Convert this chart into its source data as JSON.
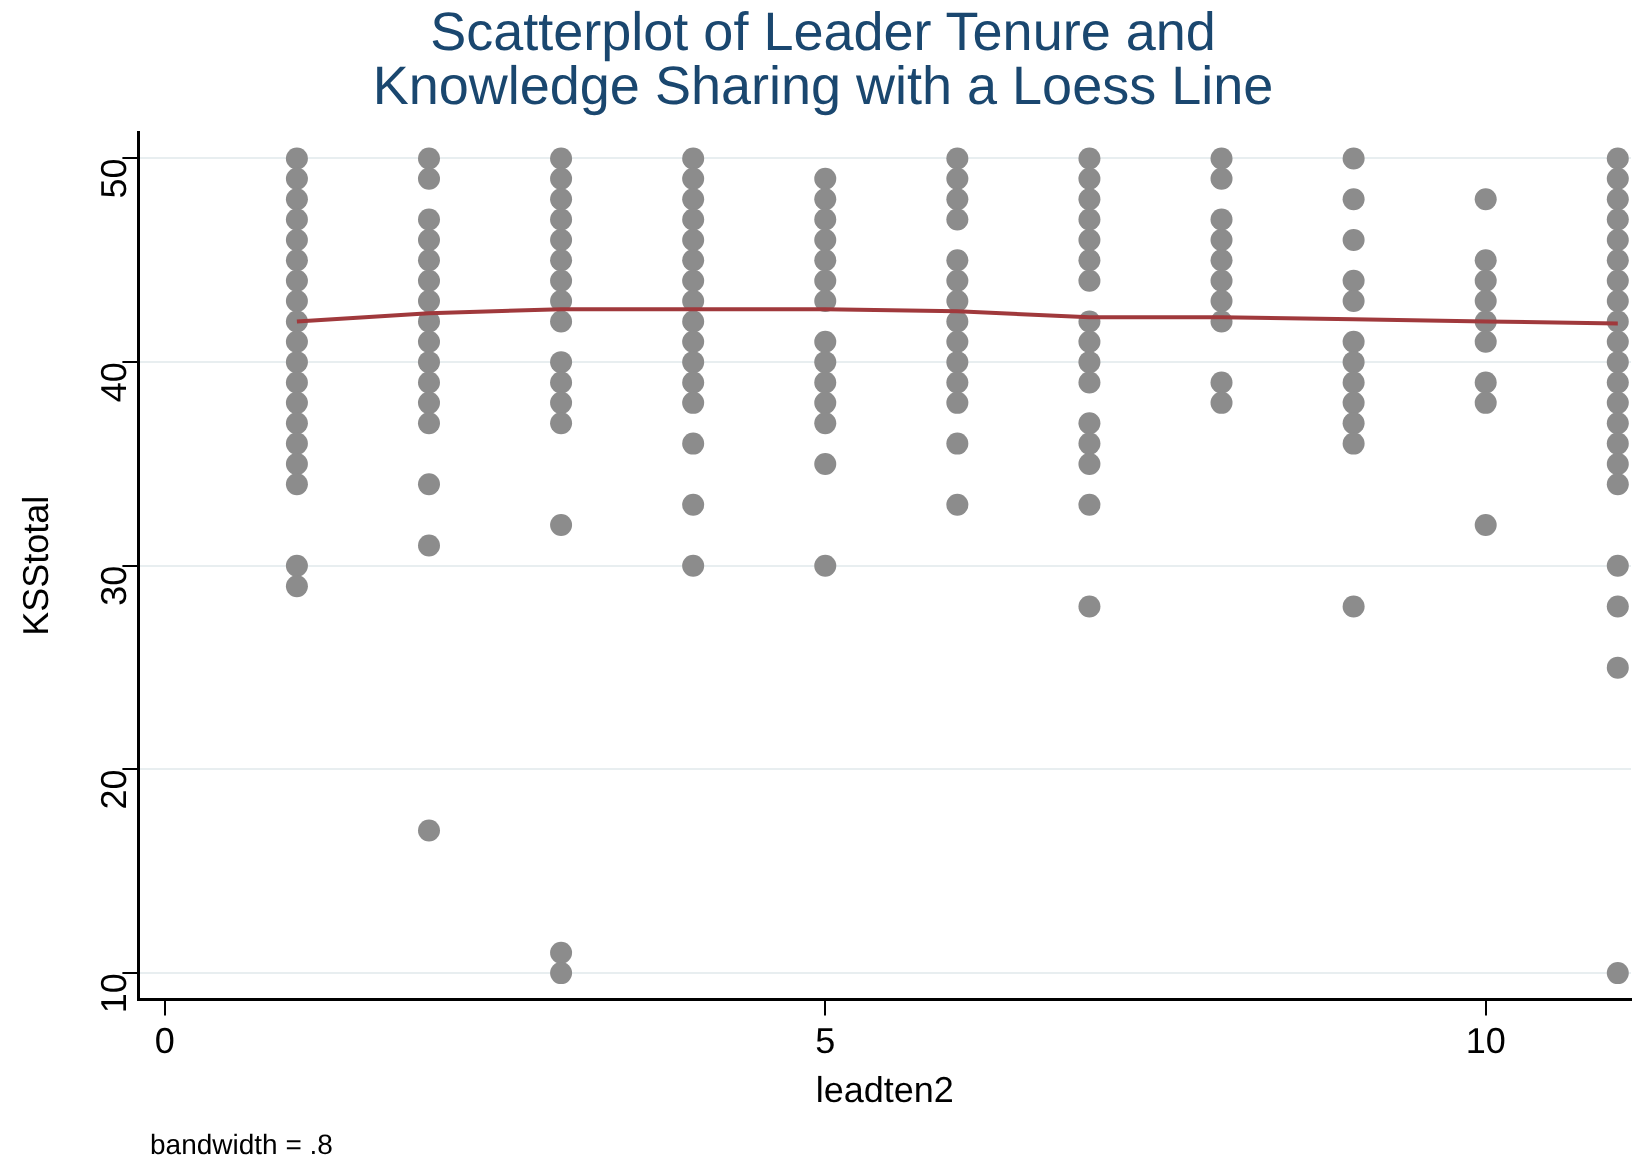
{
  "chart_data": {
    "type": "scatter",
    "title": "Scatterplot of Leader Tenure and\nKnowledge Sharing with a Loess Line",
    "xlabel": "leadten2",
    "ylabel": "KSStotal",
    "xlim": [
      -0.2,
      11.1
    ],
    "ylim": [
      8.7,
      51.3
    ],
    "xticks": [
      0,
      5,
      10
    ],
    "yticks": [
      10,
      20,
      30,
      40,
      50
    ],
    "grid": "y",
    "legend": false,
    "marker": "circle",
    "annotations": [
      "bandwidth = .8"
    ],
    "series": [
      {
        "color": "#8c8c8c",
        "x": [
          1,
          1,
          1,
          1,
          1,
          1,
          1,
          1,
          1,
          1,
          1,
          1,
          1,
          1,
          1,
          1,
          1,
          1,
          1,
          2,
          2,
          2,
          2,
          2,
          2,
          2,
          2,
          2,
          2,
          2,
          2,
          2,
          2,
          2,
          2,
          3,
          3,
          3,
          3,
          3,
          3,
          3,
          3,
          3,
          3,
          3,
          3,
          3,
          3,
          3,
          3,
          4,
          4,
          4,
          4,
          4,
          4,
          4,
          4,
          4,
          4,
          4,
          4,
          4,
          4,
          4,
          4,
          5,
          5,
          5,
          5,
          5,
          5,
          5,
          5,
          5,
          5,
          5,
          5,
          5,
          5,
          6,
          6,
          6,
          6,
          6,
          6,
          6,
          6,
          6,
          6,
          6,
          6,
          6,
          6,
          7,
          7,
          7,
          7,
          7,
          7,
          7,
          7,
          7,
          7,
          7,
          7,
          7,
          7,
          7,
          7,
          8,
          8,
          8,
          8,
          8,
          8,
          8,
          8,
          8,
          8,
          9,
          9,
          9,
          9,
          9,
          9,
          9,
          9,
          9,
          9,
          9,
          9,
          10,
          10,
          10,
          10,
          10,
          10,
          10,
          10,
          10,
          11,
          11,
          11,
          11,
          11,
          11,
          11,
          11,
          11,
          11,
          11,
          11,
          11,
          11,
          11,
          11,
          11,
          11,
          11,
          11,
          11
        ],
        "values": [
          50,
          49,
          48,
          47,
          46,
          45,
          44,
          43,
          42,
          41,
          40,
          39,
          38,
          37,
          36,
          35,
          34,
          30,
          29,
          50,
          49,
          47,
          46,
          45,
          44,
          43,
          42,
          41,
          40,
          39,
          38,
          37,
          34,
          31,
          17,
          50,
          49,
          48,
          47,
          46,
          45,
          44,
          43,
          42,
          40,
          39,
          38,
          37,
          32,
          11,
          10,
          50,
          49,
          48,
          47,
          46,
          45,
          44,
          43,
          42,
          41,
          40,
          39,
          38,
          36,
          33,
          30,
          49,
          48,
          47,
          46,
          45,
          44,
          43,
          41,
          40,
          39,
          38,
          37,
          35,
          30,
          50,
          49,
          48,
          47,
          45,
          44,
          43,
          42,
          41,
          40,
          39,
          38,
          36,
          33,
          50,
          49,
          48,
          47,
          46,
          45,
          44,
          42,
          41,
          40,
          39,
          37,
          36,
          35,
          33,
          28,
          50,
          49,
          47,
          46,
          45,
          44,
          43,
          42,
          39,
          38,
          50,
          48,
          46,
          44,
          43,
          41,
          40,
          39,
          38,
          37,
          36,
          28,
          48,
          45,
          44,
          43,
          42,
          41,
          39,
          38,
          32,
          50,
          49,
          48,
          47,
          46,
          45,
          44,
          43,
          42,
          41,
          40,
          39,
          38,
          37,
          36,
          35,
          34,
          30,
          28,
          25,
          10
        ]
      },
      {
        "type": "line",
        "color": "#a0393c",
        "marker": "none",
        "x": [
          1,
          2,
          3,
          4,
          5,
          6,
          7,
          8,
          9,
          10,
          11
        ],
        "values": [
          42.0,
          42.4,
          42.6,
          42.6,
          42.6,
          42.5,
          42.2,
          42.2,
          42.1,
          42.0,
          41.9
        ]
      }
    ]
  }
}
